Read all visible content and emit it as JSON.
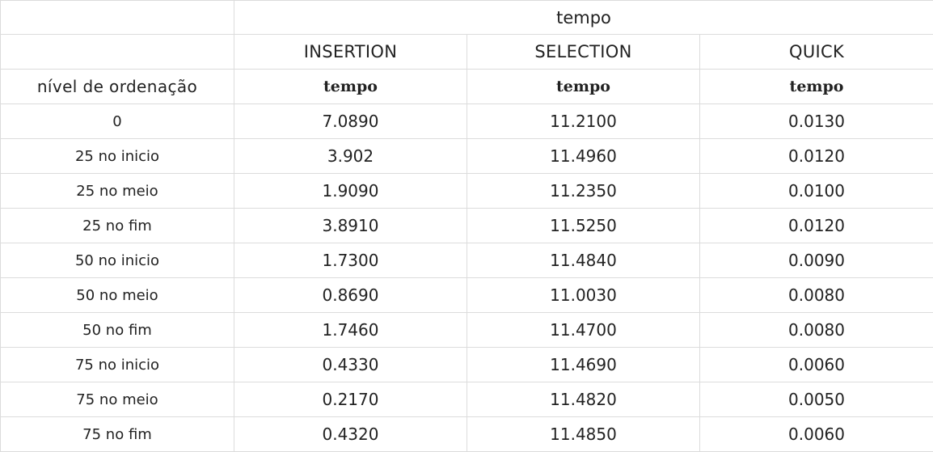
{
  "table": {
    "top_header": "tempo",
    "algorithms": [
      "INSERTION",
      "SELECTION",
      "QUICK"
    ],
    "row_header": "nível de ordenação",
    "sub_header": "tempo",
    "rows": [
      {
        "label": "0",
        "values": [
          "7.0890",
          "11.2100",
          "0.0130"
        ]
      },
      {
        "label": "25 no inicio",
        "values": [
          "3.902",
          "11.4960",
          "0.0120"
        ]
      },
      {
        "label": "25 no meio",
        "values": [
          "1.9090",
          "11.2350",
          "0.0100"
        ]
      },
      {
        "label": "25 no fim",
        "values": [
          "3.8910",
          "11.5250",
          "0.0120"
        ]
      },
      {
        "label": "50 no inicio",
        "values": [
          "1.7300",
          "11.4840",
          "0.0090"
        ]
      },
      {
        "label": "50 no meio",
        "values": [
          "0.8690",
          "11.0030",
          "0.0080"
        ]
      },
      {
        "label": "50 no fim",
        "values": [
          "1.7460",
          "11.4700",
          "0.0080"
        ]
      },
      {
        "label": "75 no inicio",
        "values": [
          "0.4330",
          "11.4690",
          "0.0060"
        ]
      },
      {
        "label": "75 no meio",
        "values": [
          "0.2170",
          "11.4820",
          "0.0050"
        ]
      },
      {
        "label": "75 no fim",
        "values": [
          "0.4320",
          "11.4850",
          "0.0060"
        ]
      }
    ]
  }
}
